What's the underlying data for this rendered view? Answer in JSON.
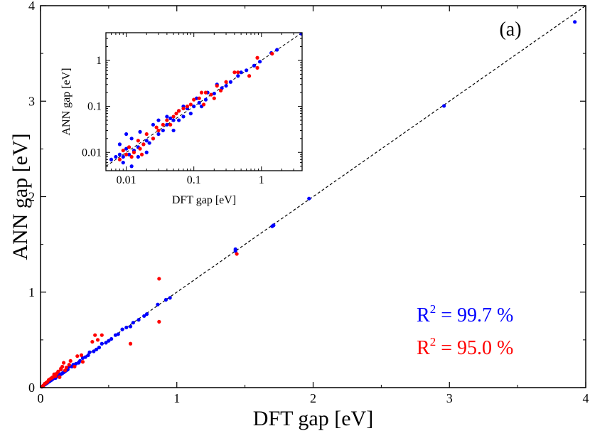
{
  "chart_data": [
    {
      "type": "scatter",
      "panel_label": "(a)",
      "xlabel": "DFT gap [eV]",
      "ylabel": "ANN gap [eV]",
      "xlim": [
        0,
        4
      ],
      "ylim": [
        0,
        4
      ],
      "xticks": [
        0,
        1,
        2,
        3,
        4
      ],
      "yticks": [
        0,
        1,
        2,
        3,
        4
      ],
      "diagonal_reference": true,
      "colors": {
        "blue": "#0000ff",
        "red": "#ff0000"
      },
      "annotations": [
        {
          "sup": "2",
          "pre": "R",
          "text": " = 99.7 %",
          "color": "#0000ff"
        },
        {
          "sup": "2",
          "pre": "R",
          "text": " = 95.0 %",
          "color": "#ff0000"
        }
      ],
      "series": [
        {
          "color": "#0000ff",
          "points": [
            [
              3.92,
              3.83
            ],
            [
              2.96,
              2.95
            ],
            [
              1.97,
              1.98
            ],
            [
              1.71,
              1.7
            ],
            [
              1.7,
              1.69
            ],
            [
              1.43,
              1.45
            ],
            [
              1.43,
              1.43
            ],
            [
              0.95,
              0.94
            ],
            [
              0.92,
              0.92
            ],
            [
              0.86,
              0.87
            ],
            [
              0.78,
              0.77
            ],
            [
              0.76,
              0.75
            ],
            [
              0.72,
              0.71
            ],
            [
              0.68,
              0.68
            ],
            [
              0.66,
              0.64
            ],
            [
              0.63,
              0.63
            ],
            [
              0.6,
              0.61
            ],
            [
              0.57,
              0.56
            ],
            [
              0.55,
              0.55
            ],
            [
              0.52,
              0.51
            ],
            [
              0.5,
              0.49
            ],
            [
              0.48,
              0.47
            ],
            [
              0.45,
              0.46
            ],
            [
              0.43,
              0.42
            ],
            [
              0.41,
              0.4
            ],
            [
              0.39,
              0.38
            ],
            [
              0.36,
              0.37
            ],
            [
              0.35,
              0.34
            ],
            [
              0.33,
              0.32
            ],
            [
              0.31,
              0.31
            ],
            [
              0.29,
              0.28
            ],
            [
              0.28,
              0.26
            ],
            [
              0.26,
              0.25
            ],
            [
              0.24,
              0.24
            ],
            [
              0.23,
              0.22
            ],
            [
              0.21,
              0.22
            ],
            [
              0.2,
              0.19
            ],
            [
              0.19,
              0.18
            ],
            [
              0.18,
              0.17
            ],
            [
              0.17,
              0.16
            ],
            [
              0.16,
              0.15
            ],
            [
              0.15,
              0.14
            ],
            [
              0.14,
              0.14
            ],
            [
              0.13,
              0.12
            ],
            [
              0.12,
              0.12
            ],
            [
              0.11,
              0.1
            ],
            [
              0.1,
              0.1
            ],
            [
              0.09,
              0.09
            ],
            [
              0.08,
              0.08
            ],
            [
              0.07,
              0.07
            ],
            [
              0.06,
              0.06
            ],
            [
              0.05,
              0.05
            ],
            [
              0.04,
              0.04
            ],
            [
              0.03,
              0.03
            ],
            [
              0.02,
              0.02
            ],
            [
              0.01,
              0.01
            ]
          ]
        },
        {
          "color": "#ff0000",
          "points": [
            [
              1.44,
              1.4
            ],
            [
              0.87,
              1.14
            ],
            [
              0.87,
              0.69
            ],
            [
              0.66,
              0.46
            ],
            [
              0.45,
              0.55
            ],
            [
              0.4,
              0.55
            ],
            [
              0.42,
              0.5
            ],
            [
              0.38,
              0.48
            ],
            [
              0.31,
              0.27
            ],
            [
              0.3,
              0.34
            ],
            [
              0.27,
              0.33
            ],
            [
              0.25,
              0.22
            ],
            [
              0.22,
              0.28
            ],
            [
              0.21,
              0.24
            ],
            [
              0.19,
              0.21
            ],
            [
              0.18,
              0.18
            ],
            [
              0.17,
              0.26
            ],
            [
              0.16,
              0.22
            ],
            [
              0.15,
              0.2
            ],
            [
              0.15,
              0.19
            ],
            [
              0.14,
              0.11
            ],
            [
              0.13,
              0.17
            ],
            [
              0.12,
              0.15
            ],
            [
              0.11,
              0.12
            ],
            [
              0.1,
              0.14
            ],
            [
              0.09,
              0.11
            ],
            [
              0.08,
              0.1
            ],
            [
              0.07,
              0.09
            ],
            [
              0.06,
              0.08
            ],
            [
              0.05,
              0.06
            ],
            [
              0.04,
              0.05
            ],
            [
              0.03,
              0.04
            ],
            [
              0.02,
              0.02
            ],
            [
              0.01,
              0.01
            ]
          ]
        }
      ]
    },
    {
      "type": "scatter",
      "role": "inset",
      "xlabel": "DFT gap [eV]",
      "ylabel": "ANN gap [eV]",
      "xscale": "log",
      "yscale": "log",
      "xlim": [
        0.005,
        4
      ],
      "ylim": [
        0.004,
        4
      ],
      "xtick_labels": [
        [
          "0.01",
          0.01
        ],
        [
          "0.1",
          0.1
        ],
        [
          "1",
          1
        ]
      ],
      "ytick_labels": [
        [
          "0.01",
          0.01
        ],
        [
          "0.1",
          0.1
        ],
        [
          "1",
          1
        ]
      ],
      "diagonal_reference": true,
      "series": [
        {
          "color": "#0000ff",
          "points": [
            [
              3.9,
              3.8
            ],
            [
              1.7,
              1.7
            ],
            [
              1.4,
              1.45
            ],
            [
              0.95,
              0.94
            ],
            [
              0.78,
              0.77
            ],
            [
              0.6,
              0.61
            ],
            [
              0.45,
              0.46
            ],
            [
              0.35,
              0.34
            ],
            [
              0.26,
              0.25
            ],
            [
              0.2,
              0.19
            ],
            [
              0.15,
              0.14
            ],
            [
              0.12,
              0.12
            ],
            [
              0.1,
              0.1
            ],
            [
              0.08,
              0.09
            ],
            [
              0.07,
              0.06
            ],
            [
              0.06,
              0.05
            ],
            [
              0.05,
              0.05
            ],
            [
              0.04,
              0.04
            ],
            [
              0.035,
              0.03
            ],
            [
              0.03,
              0.025
            ],
            [
              0.025,
              0.02
            ],
            [
              0.02,
              0.018
            ],
            [
              0.018,
              0.015
            ],
            [
              0.015,
              0.013
            ],
            [
              0.013,
              0.011
            ],
            [
              0.011,
              0.009
            ],
            [
              0.01,
              0.012
            ],
            [
              0.009,
              0.008
            ],
            [
              0.008,
              0.009
            ],
            [
              0.007,
              0.008
            ],
            [
              0.01,
              0.025
            ],
            [
              0.012,
              0.02
            ],
            [
              0.008,
              0.015
            ],
            [
              0.015,
              0.008
            ],
            [
              0.02,
              0.01
            ],
            [
              0.009,
              0.006
            ],
            [
              0.006,
              0.007
            ],
            [
              0.025,
              0.04
            ],
            [
              0.03,
              0.05
            ],
            [
              0.04,
              0.06
            ],
            [
              0.05,
              0.03
            ],
            [
              0.06,
              0.08
            ],
            [
              0.07,
              0.1
            ],
            [
              0.09,
              0.07
            ],
            [
              0.11,
              0.15
            ],
            [
              0.13,
              0.1
            ],
            [
              0.16,
              0.2
            ],
            [
              0.22,
              0.3
            ],
            [
              0.3,
              0.28
            ],
            [
              0.5,
              0.55
            ],
            [
              0.012,
              0.005
            ],
            [
              0.016,
              0.028
            ],
            [
              0.022,
              0.016
            ],
            [
              0.045,
              0.055
            ]
          ]
        },
        {
          "color": "#ff0000",
          "points": [
            [
              1.44,
              1.4
            ],
            [
              0.87,
              1.14
            ],
            [
              0.87,
              0.69
            ],
            [
              0.66,
              0.46
            ],
            [
              0.45,
              0.55
            ],
            [
              0.4,
              0.55
            ],
            [
              0.3,
              0.34
            ],
            [
              0.25,
              0.22
            ],
            [
              0.22,
              0.28
            ],
            [
              0.18,
              0.18
            ],
            [
              0.15,
              0.2
            ],
            [
              0.14,
              0.11
            ],
            [
              0.12,
              0.15
            ],
            [
              0.1,
              0.14
            ],
            [
              0.09,
              0.11
            ],
            [
              0.08,
              0.1
            ],
            [
              0.07,
              0.09
            ],
            [
              0.06,
              0.08
            ],
            [
              0.05,
              0.06
            ],
            [
              0.04,
              0.05
            ],
            [
              0.035,
              0.04
            ],
            [
              0.03,
              0.03
            ],
            [
              0.025,
              0.02
            ],
            [
              0.02,
              0.025
            ],
            [
              0.018,
              0.015
            ],
            [
              0.015,
              0.018
            ],
            [
              0.013,
              0.01
            ],
            [
              0.011,
              0.013
            ],
            [
              0.01,
              0.009
            ],
            [
              0.009,
              0.011
            ],
            [
              0.008,
              0.007
            ],
            [
              0.012,
              0.008
            ],
            [
              0.016,
              0.012
            ],
            [
              0.028,
              0.035
            ],
            [
              0.045,
              0.04
            ],
            [
              0.055,
              0.07
            ],
            [
              0.13,
              0.2
            ],
            [
              0.2,
              0.15
            ],
            [
              0.017,
              0.009
            ]
          ]
        }
      ]
    }
  ]
}
